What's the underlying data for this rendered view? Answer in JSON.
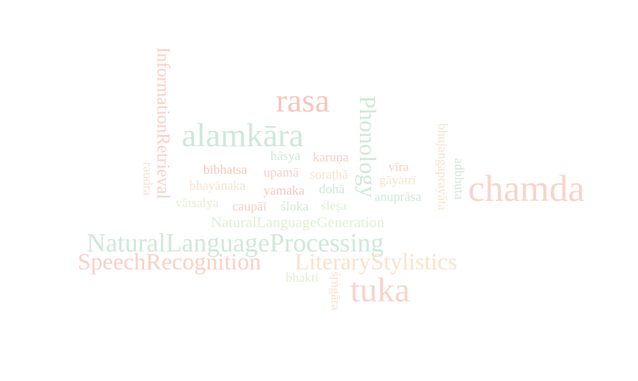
{
  "words": [
    {
      "text": "rasa",
      "color": "#f6c6bb"
    },
    {
      "text": "alamkāra",
      "color": "#cfe8d9"
    },
    {
      "text": "Phonology",
      "color": "#cfe8d9"
    },
    {
      "text": "chamda",
      "color": "#f8d4c9"
    },
    {
      "text": "NaturalLanguageProcessing",
      "color": "#cfe8d9"
    },
    {
      "text": "SpeechRecognition",
      "color": "#f9cfc5"
    },
    {
      "text": "LiteraryStylistics",
      "color": "#fbe1cc"
    },
    {
      "text": "tuka",
      "color": "#f8d4c9"
    },
    {
      "text": "InformationRetrieval",
      "color": "#f9cfc5"
    },
    {
      "text": "NaturalLanguageGeneration",
      "color": "#e2efd0"
    },
    {
      "text": "hāsya",
      "color": "#cfe8d9"
    },
    {
      "text": "karuṇa",
      "color": "#f9cfc5"
    },
    {
      "text": "bībhatsa",
      "color": "#f6c6bb"
    },
    {
      "text": "upamā",
      "color": "#f9cfc5"
    },
    {
      "text": "soraṭhā",
      "color": "#fbe1cc"
    },
    {
      "text": "vīra",
      "color": "#f9cfc5"
    },
    {
      "text": "gāyatrī",
      "color": "#fbe1cc"
    },
    {
      "text": "bhayānaka",
      "color": "#fbe1cc"
    },
    {
      "text": "yamaka",
      "color": "#f6c6bb"
    },
    {
      "text": "dohā",
      "color": "#cfe8d9"
    },
    {
      "text": "anuprāsa",
      "color": "#cfe8d9"
    },
    {
      "text": "vātsalya",
      "color": "#e2efd0"
    },
    {
      "text": "caupāī",
      "color": "#f9cfc5"
    },
    {
      "text": "śloka",
      "color": "#cfe8d9"
    },
    {
      "text": "śleṣa",
      "color": "#e2efd0"
    },
    {
      "text": "bhakti",
      "color": "#e2efd0"
    },
    {
      "text": "raudra",
      "color": "#fbe1cc"
    },
    {
      "text": "bhujangaprayāta",
      "color": "#fbe1cc"
    },
    {
      "text": "adbhuta",
      "color": "#cfe8d9"
    },
    {
      "text": "śṛṅgāra",
      "color": "#fbe1cc"
    }
  ]
}
